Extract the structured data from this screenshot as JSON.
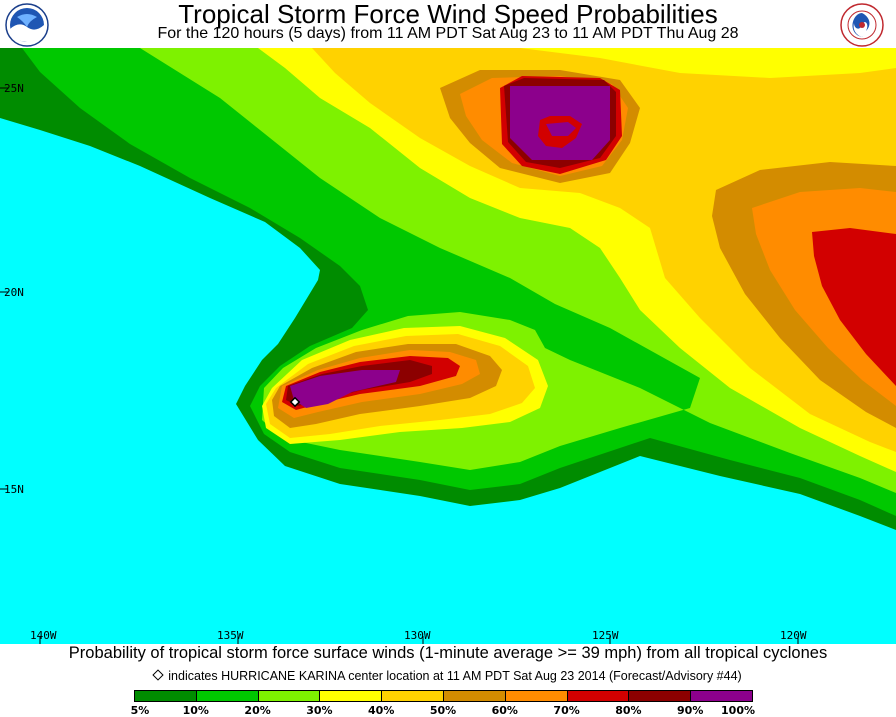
{
  "header": {
    "title": "Tropical Storm Force Wind Speed Probabilities",
    "subtitle": "For the 120 hours (5 days) from 11 AM PDT Sat Aug 23 to 11 AM PDT Thu Aug 28"
  },
  "logos": {
    "left": "noaa-logo-icon",
    "right": "national-weather-service-logo-icon"
  },
  "map": {
    "ocean_color": "#00ffff",
    "lat_labels": [
      "25N",
      "20N",
      "15N"
    ],
    "lon_labels": [
      "140W",
      "135W",
      "130W",
      "125W",
      "120W"
    ],
    "storm_center_icon": "diamond-icon"
  },
  "caption": "Probability of tropical storm force surface winds (1-minute average >= 39 mph) from all tropical cyclones",
  "note": "indicates HURRICANE KARINA center location at 11 AM PDT Sat Aug 23 2014 (Forecast/Advisory #44)",
  "legend": {
    "colors": [
      "#008c00",
      "#00c800",
      "#7ef200",
      "#ffff00",
      "#ffd200",
      "#d38c00",
      "#ff8c00",
      "#d20000",
      "#8c0000",
      "#8c008c"
    ],
    "labels": [
      "5%",
      "10%",
      "20%",
      "30%",
      "40%",
      "50%",
      "60%",
      "70%",
      "80%",
      "90%",
      "100%"
    ]
  }
}
